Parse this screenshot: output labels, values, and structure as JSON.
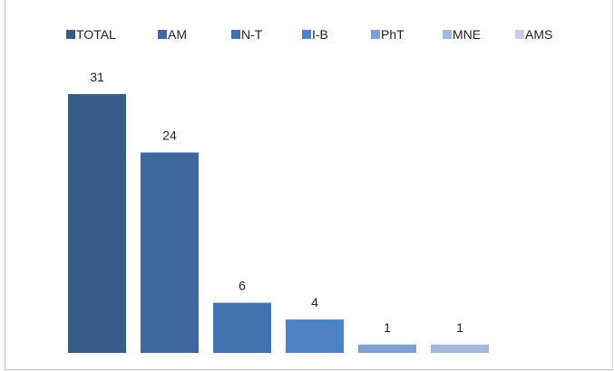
{
  "chart_data": {
    "type": "bar",
    "title": "",
    "xlabel": "",
    "ylabel": "",
    "ylim": [
      0,
      35
    ],
    "grid": false,
    "legend_position": "top",
    "series": [
      {
        "name": "TOTAL",
        "value": 31,
        "color": "#365c8a"
      },
      {
        "name": "AM",
        "value": 24,
        "color": "#40689c"
      },
      {
        "name": "N-T",
        "value": 6,
        "color": "#4372b1"
      },
      {
        "name": "I-B",
        "value": 4,
        "color": "#4d82c4"
      },
      {
        "name": "PhT",
        "value": 1,
        "color": "#7f9fd0"
      },
      {
        "name": "MNE",
        "value": 1,
        "color": "#a4b7da"
      },
      {
        "name": "AMS",
        "value": null,
        "color": "#c5d0e6"
      }
    ]
  }
}
